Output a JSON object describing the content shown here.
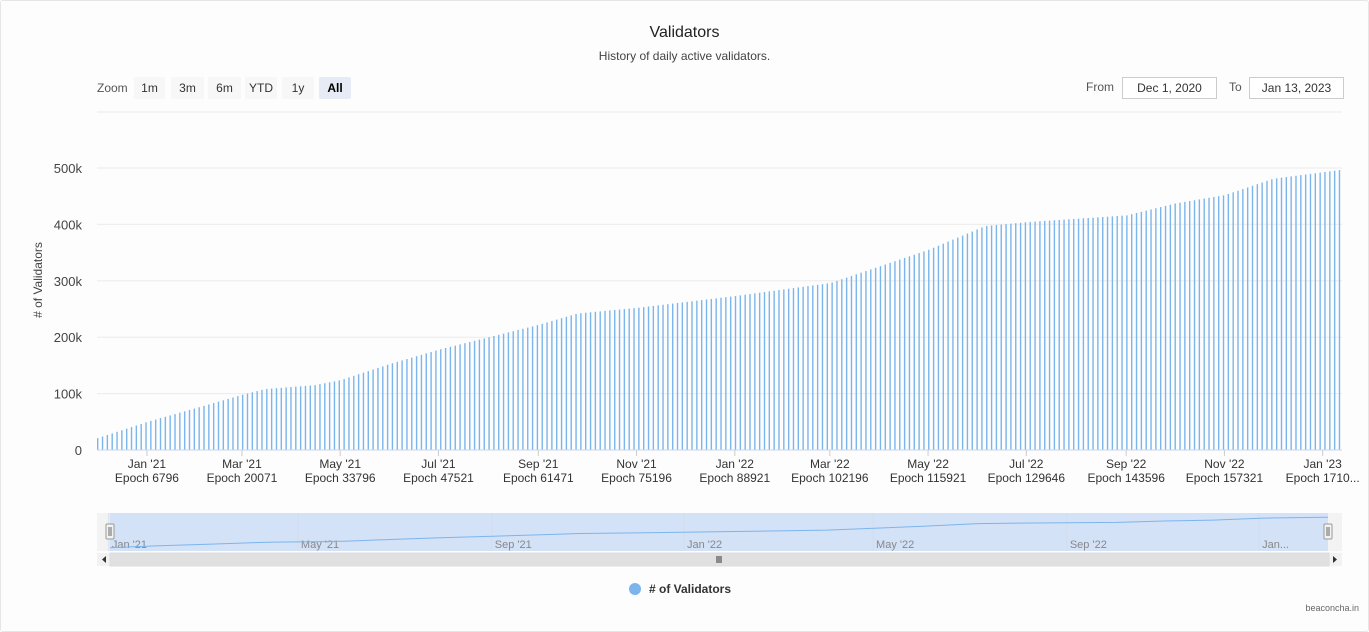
{
  "header": {
    "title": "Validators",
    "subtitle": "History of daily active validators."
  },
  "range_selector": {
    "zoom_label": "Zoom",
    "buttons": [
      "1m",
      "3m",
      "6m",
      "YTD",
      "1y",
      "All"
    ],
    "active_button": "All",
    "from_label": "From",
    "from_value": "Dec 1, 2020",
    "to_label": "To",
    "to_value": "Jan 13, 2023"
  },
  "colors": {
    "series": "#7cb5ec",
    "navigator_mask": "#cfe0f7",
    "scrollbar": "#e0e0e0"
  },
  "chart_data": {
    "type": "bar",
    "title": "Validators",
    "subtitle": "History of daily active validators.",
    "ylabel": "# of Validators",
    "xlabel": "",
    "ylim": [
      0,
      500000
    ],
    "yticks": [
      0,
      100000,
      200000,
      300000,
      400000,
      500000
    ],
    "ytick_labels": [
      "0",
      "100k",
      "200k",
      "300k",
      "400k",
      "500k"
    ],
    "x_range": [
      "2020-12-01",
      "2023-01-13"
    ],
    "xticks": [
      {
        "date": "2021-01-01",
        "label": "Jan '21",
        "epoch": "Epoch 6796"
      },
      {
        "date": "2021-03-01",
        "label": "Mar '21",
        "epoch": "Epoch 20071"
      },
      {
        "date": "2021-05-01",
        "label": "May '21",
        "epoch": "Epoch 33796"
      },
      {
        "date": "2021-07-01",
        "label": "Jul '21",
        "epoch": "Epoch 47521"
      },
      {
        "date": "2021-09-01",
        "label": "Sep '21",
        "epoch": "Epoch 61471"
      },
      {
        "date": "2021-11-01",
        "label": "Nov '21",
        "epoch": "Epoch 75196"
      },
      {
        "date": "2022-01-01",
        "label": "Jan '22",
        "epoch": "Epoch 88921"
      },
      {
        "date": "2022-03-01",
        "label": "Mar '22",
        "epoch": "Epoch 102196"
      },
      {
        "date": "2022-05-01",
        "label": "May '22",
        "epoch": "Epoch 115921"
      },
      {
        "date": "2022-07-01",
        "label": "Jul '22",
        "epoch": "Epoch 129646"
      },
      {
        "date": "2022-09-01",
        "label": "Sep '22",
        "epoch": "Epoch 143596"
      },
      {
        "date": "2022-11-01",
        "label": "Nov '22",
        "epoch": "Epoch 157321"
      },
      {
        "date": "2023-01-01",
        "label": "Jan '23",
        "epoch": "Epoch 1710..."
      }
    ],
    "series": [
      {
        "name": "# of Validators",
        "curve_points": [
          {
            "date": "2020-12-01",
            "value": 21000
          },
          {
            "date": "2021-01-01",
            "value": 50000
          },
          {
            "date": "2021-02-01",
            "value": 75000
          },
          {
            "date": "2021-03-01",
            "value": 98000
          },
          {
            "date": "2021-03-15",
            "value": 108000
          },
          {
            "date": "2021-04-15",
            "value": 115000
          },
          {
            "date": "2021-05-01",
            "value": 124000
          },
          {
            "date": "2021-06-01",
            "value": 153000
          },
          {
            "date": "2021-07-01",
            "value": 178000
          },
          {
            "date": "2021-08-01",
            "value": 200000
          },
          {
            "date": "2021-09-01",
            "value": 222000
          },
          {
            "date": "2021-09-25",
            "value": 242000
          },
          {
            "date": "2021-11-01",
            "value": 252000
          },
          {
            "date": "2022-01-01",
            "value": 273000
          },
          {
            "date": "2022-03-01",
            "value": 296000
          },
          {
            "date": "2022-05-01",
            "value": 355000
          },
          {
            "date": "2022-06-05",
            "value": 397000
          },
          {
            "date": "2022-07-01",
            "value": 404000
          },
          {
            "date": "2022-09-01",
            "value": 416000
          },
          {
            "date": "2022-10-01",
            "value": 437000
          },
          {
            "date": "2022-11-01",
            "value": 452000
          },
          {
            "date": "2022-12-01",
            "value": 481000
          },
          {
            "date": "2023-01-13",
            "value": 497000
          }
        ]
      }
    ],
    "navigator": {
      "labels": [
        "Jan '21",
        "May '21",
        "Sep '21",
        "Jan '22",
        "May '22",
        "Sep '22",
        "Jan..."
      ]
    },
    "legend": {
      "label": "# of Validators",
      "position": "bottom-center"
    }
  },
  "credits": "beaconcha.in"
}
